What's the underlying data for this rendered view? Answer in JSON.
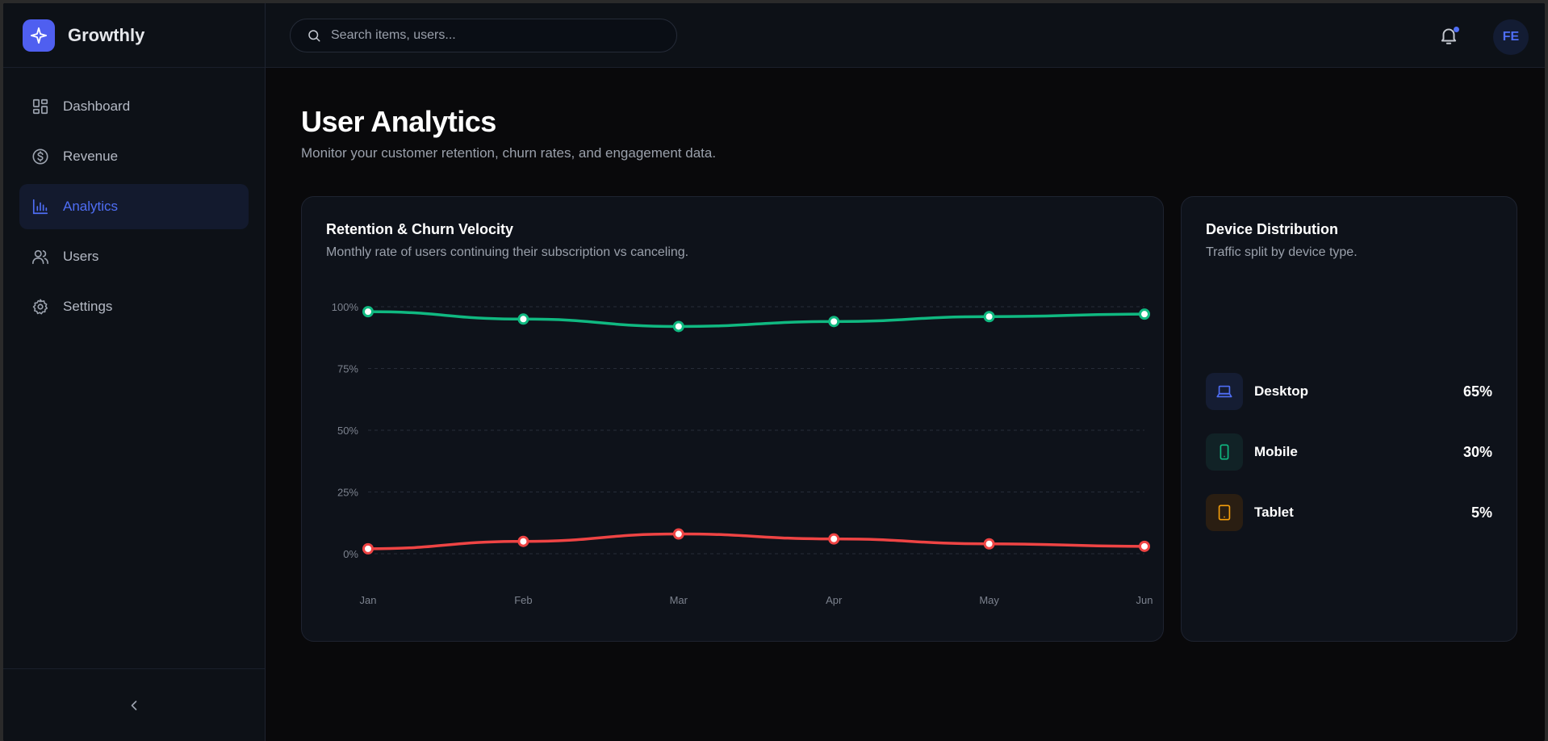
{
  "app": {
    "name": "Growthly"
  },
  "search": {
    "placeholder": "Search items, users..."
  },
  "user": {
    "initials": "FE"
  },
  "sidebar": {
    "items": [
      {
        "label": "Dashboard",
        "icon": "dashboard-icon",
        "active": false
      },
      {
        "label": "Revenue",
        "icon": "dollar-icon",
        "active": false
      },
      {
        "label": "Analytics",
        "icon": "bar-chart-icon",
        "active": true
      },
      {
        "label": "Users",
        "icon": "users-icon",
        "active": false
      },
      {
        "label": "Settings",
        "icon": "gear-icon",
        "active": false
      }
    ]
  },
  "page": {
    "title": "User Analytics",
    "subtitle": "Monitor your customer retention, churn rates, and engagement data."
  },
  "retention_card": {
    "title": "Retention & Churn Velocity",
    "subtitle": "Monthly rate of users continuing their subscription vs canceling."
  },
  "device_card": {
    "title": "Device Distribution",
    "subtitle": "Traffic split by device type.",
    "devices": [
      {
        "name": "Desktop",
        "value": "65%",
        "icon": "laptop-icon",
        "color": "#4f6ef5",
        "bg": "#151d33"
      },
      {
        "name": "Mobile",
        "value": "30%",
        "icon": "phone-icon",
        "color": "#10b981",
        "bg": "#112226"
      },
      {
        "name": "Tablet",
        "value": "5%",
        "icon": "tablet-icon",
        "color": "#f59e0b",
        "bg": "#2a1e12"
      }
    ]
  },
  "colors": {
    "accent": "#4f6ef5",
    "retention": "#10b981",
    "churn": "#ef4444"
  },
  "chart_data": {
    "type": "line",
    "categories": [
      "Jan",
      "Feb",
      "Mar",
      "Apr",
      "May",
      "Jun"
    ],
    "series": [
      {
        "values": [
          98,
          95,
          92,
          94,
          96,
          97
        ],
        "color": "#10b981"
      },
      {
        "values": [
          2,
          5,
          8,
          6,
          4,
          3
        ],
        "color": "#ef4444"
      }
    ],
    "yticks": [
      "0%",
      "25%",
      "50%",
      "75%",
      "100%"
    ],
    "ylim": [
      0,
      100
    ],
    "grid": true
  }
}
